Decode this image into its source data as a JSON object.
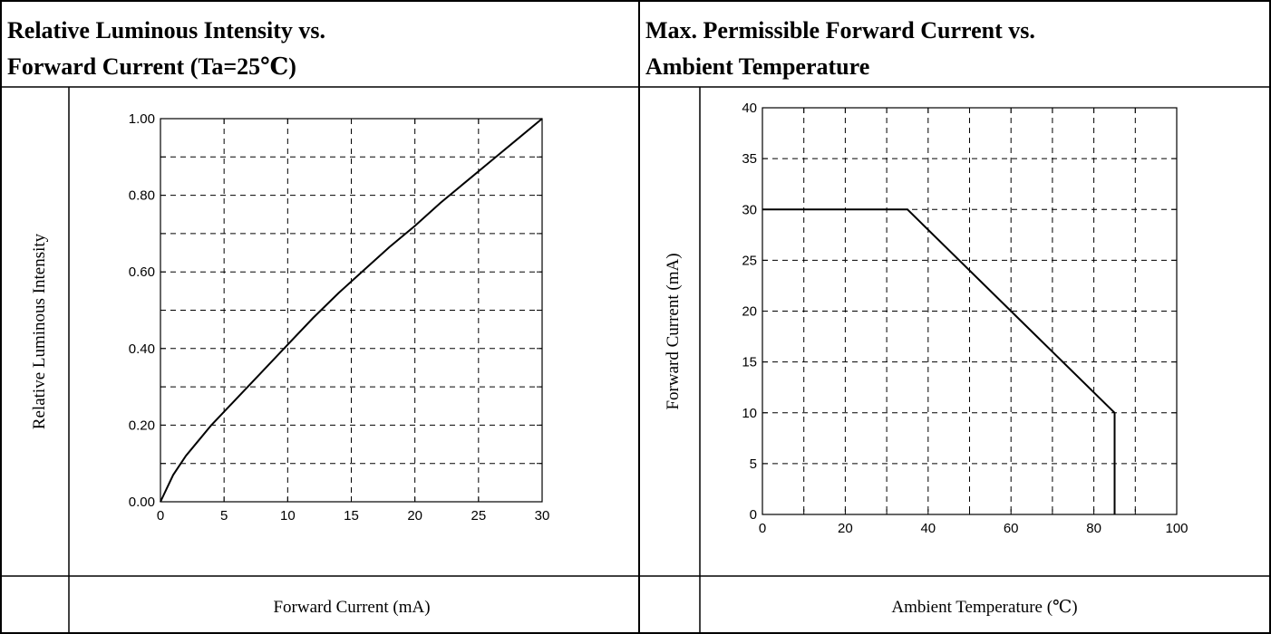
{
  "chart_data": [
    {
      "type": "line",
      "title": "Relative Luminous Intensity vs. Forward Current (Ta=25℃)",
      "title_lines": [
        "Relative Luminous Intensity vs.",
        "Forward Current (Ta=25℃)"
      ],
      "xlabel": "Forward Current (mA)",
      "ylabel": "Relative Luminous Intensity",
      "xlim": [
        0,
        30
      ],
      "ylim": [
        0,
        1.0
      ],
      "x_ticks": [
        "0",
        "5",
        "10",
        "15",
        "20",
        "25",
        "30"
      ],
      "y_ticks": [
        "0.00",
        "0.20",
        "0.40",
        "0.60",
        "0.80",
        "1.00"
      ],
      "grid": true,
      "series": [
        {
          "x": [
            0,
            1,
            2,
            3,
            4,
            5,
            6,
            8,
            10,
            12,
            14,
            16,
            18,
            20,
            22,
            24,
            26,
            28,
            30
          ],
          "y": [
            0,
            0.07,
            0.12,
            0.16,
            0.2,
            0.235,
            0.27,
            0.34,
            0.41,
            0.48,
            0.545,
            0.605,
            0.665,
            0.72,
            0.78,
            0.835,
            0.89,
            0.945,
            1.0
          ]
        }
      ]
    },
    {
      "type": "line",
      "title": "Max. Permissible Forward Current vs. Ambient Temperature",
      "title_lines": [
        "Max. Permissible Forward Current vs.",
        "Ambient Temperature"
      ],
      "xlabel": "Ambient Temperature (℃)",
      "ylabel": "Forward Current (mA)",
      "xlim": [
        0,
        100
      ],
      "ylim": [
        0,
        40
      ],
      "x_ticks": [
        "0",
        "20",
        "40",
        "60",
        "80",
        "100"
      ],
      "y_ticks": [
        "0",
        "5",
        "10",
        "15",
        "20",
        "25",
        "30",
        "35",
        "40"
      ],
      "grid": true,
      "series": [
        {
          "x": [
            0,
            35,
            85,
            85
          ],
          "y": [
            30,
            30,
            10,
            0
          ]
        }
      ]
    }
  ]
}
